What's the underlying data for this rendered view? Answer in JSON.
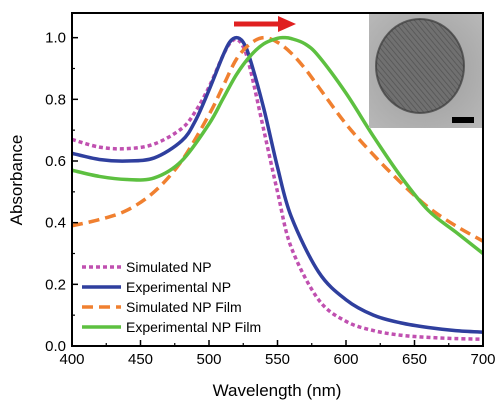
{
  "chart_data": {
    "type": "line",
    "xlabel": "Wavelength (nm)",
    "ylabel": "Absorbance",
    "xlim": [
      400,
      700
    ],
    "ylim": [
      0.0,
      1.08
    ],
    "xticks": [
      400,
      450,
      500,
      550,
      600,
      650,
      700
    ],
    "yticks": [
      0.0,
      0.2,
      0.4,
      0.6,
      0.8,
      1.0
    ],
    "xtick_labels": [
      "400",
      "450",
      "500",
      "550",
      "600",
      "650",
      "700"
    ],
    "ytick_labels": [
      "0.0",
      "0.2",
      "0.4",
      "0.6",
      "0.8",
      "1.0"
    ],
    "grid": false,
    "legend_position": "bottom-left",
    "annotations": [
      "red arrow pointing right (redshift of peak)",
      "inset TEM image of nanoparticle with scale bar"
    ],
    "series": [
      {
        "name": "Simulated NP",
        "color": "#c050b0",
        "dash": "dotted",
        "x": [
          400,
          420,
          440,
          460,
          480,
          490,
          500,
          510,
          515,
          520,
          525,
          530,
          540,
          550,
          560,
          580,
          600,
          620,
          640,
          660,
          680,
          700
        ],
        "y": [
          0.67,
          0.645,
          0.64,
          0.655,
          0.705,
          0.76,
          0.84,
          0.94,
          0.98,
          0.995,
          0.97,
          0.9,
          0.7,
          0.5,
          0.32,
          0.15,
          0.08,
          0.05,
          0.035,
          0.028,
          0.024,
          0.022
        ]
      },
      {
        "name": "Experimental NP",
        "color": "#2f3f9e",
        "dash": "solid",
        "x": [
          400,
          420,
          440,
          460,
          480,
          490,
          500,
          510,
          515,
          520,
          525,
          530,
          540,
          550,
          560,
          580,
          600,
          620,
          640,
          660,
          680,
          700
        ],
        "y": [
          0.625,
          0.605,
          0.6,
          0.61,
          0.665,
          0.73,
          0.83,
          0.94,
          0.985,
          1.0,
          0.985,
          0.93,
          0.77,
          0.58,
          0.42,
          0.24,
          0.15,
          0.1,
          0.075,
          0.06,
          0.05,
          0.045
        ]
      },
      {
        "name": "Simulated NP Film",
        "color": "#f08030",
        "dash": "dashed",
        "x": [
          400,
          420,
          440,
          460,
          480,
          500,
          510,
          520,
          530,
          540,
          550,
          560,
          570,
          580,
          600,
          620,
          640,
          660,
          680,
          700
        ],
        "y": [
          0.39,
          0.41,
          0.44,
          0.5,
          0.6,
          0.75,
          0.84,
          0.93,
          0.98,
          1.0,
          0.985,
          0.95,
          0.9,
          0.84,
          0.72,
          0.62,
          0.53,
          0.45,
          0.39,
          0.34
        ]
      },
      {
        "name": "Experimental NP Film",
        "color": "#5dc040",
        "dash": "solid",
        "x": [
          400,
          420,
          440,
          460,
          480,
          500,
          510,
          520,
          530,
          540,
          550,
          555,
          560,
          570,
          580,
          600,
          620,
          640,
          660,
          680,
          700
        ],
        "y": [
          0.57,
          0.55,
          0.54,
          0.545,
          0.6,
          0.72,
          0.8,
          0.88,
          0.94,
          0.98,
          0.998,
          1.0,
          0.997,
          0.98,
          0.94,
          0.82,
          0.68,
          0.55,
          0.44,
          0.37,
          0.3
        ]
      }
    ]
  }
}
